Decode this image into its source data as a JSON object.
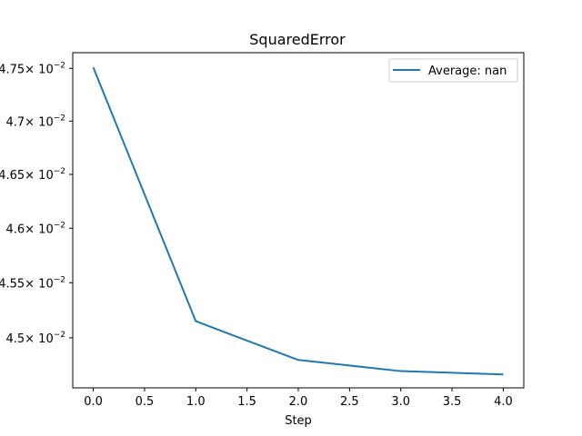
{
  "chart_data": {
    "type": "line",
    "title": "SquaredError",
    "xlabel": "Step",
    "ylabel": "",
    "x": [
      0,
      1,
      2,
      3,
      4
    ],
    "series": [
      {
        "name": "Average: nan",
        "values": [
          0.04751,
          0.04515,
          0.0448,
          0.0447,
          0.04467
        ],
        "color": "#1f77b4"
      }
    ],
    "xlim": [
      -0.2,
      4.2
    ],
    "ylim": [
      0.04455,
      0.04765
    ],
    "xticks": [
      0.0,
      0.5,
      1.0,
      1.5,
      2.0,
      2.5,
      3.0,
      3.5,
      4.0
    ],
    "xtick_labels": [
      "0.0",
      "0.5",
      "1.0",
      "1.5",
      "2.0",
      "2.5",
      "3.0",
      "3.5",
      "4.0"
    ],
    "yticks": [
      0.0475,
      0.047,
      0.0465,
      0.046,
      0.0455,
      0.045
    ],
    "ytick_mantissas": [
      "4.75",
      "4.7",
      "4.65",
      "4.6",
      "4.55",
      "4.5"
    ],
    "ytick_multiplier": "× 10",
    "ytick_exponent": "−2",
    "yscale": "log",
    "grid": false,
    "legend_position": "upper right"
  }
}
